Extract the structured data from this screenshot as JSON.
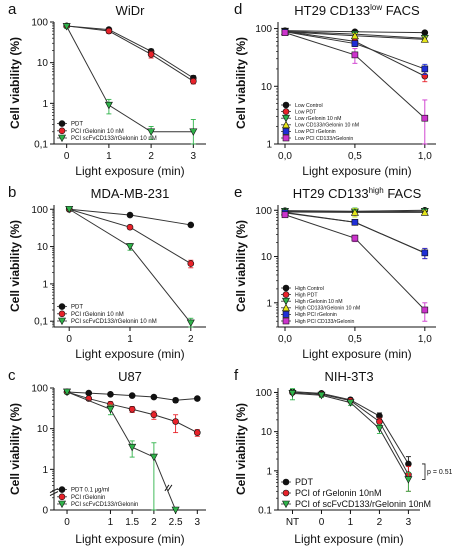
{
  "figure": {
    "background": "#ffffff"
  },
  "chart_data": [
    {
      "letter": "a",
      "title": "WiDr",
      "type": "line",
      "scale": "log",
      "xlabel": "Light exposure (min)",
      "ylabel": "Cell viability (%)",
      "xlim": [
        -0.3,
        3.3
      ],
      "ylim": [
        0.1,
        100
      ],
      "x_ticks": [
        0,
        1,
        2,
        3
      ],
      "x_tick_labels": [
        "0",
        "1",
        "2",
        "3"
      ],
      "y_ticks": [
        0.1,
        1,
        10,
        100
      ],
      "y_tick_labels": [
        "0,1",
        "1",
        "10",
        "100"
      ],
      "legend_position": "bottom-left",
      "series": [
        {
          "name": "PDT",
          "color": "#111111",
          "marker": "circle",
          "x": [
            0,
            1,
            2,
            3
          ],
          "values": [
            80,
            65,
            19,
            4.2
          ],
          "err": [
            8,
            7,
            2.5,
            0.6
          ]
        },
        {
          "name": "PCI rGelonin 10 nM",
          "color": "#e8222a",
          "marker": "circle",
          "x": [
            0,
            1,
            2,
            3
          ],
          "values": [
            80,
            60,
            16,
            3.5
          ],
          "err": [
            8,
            8,
            3,
            0.5
          ]
        },
        {
          "name": "PCI scFvCD133/rGelonin 10 nM",
          "color": "#2fb34a",
          "marker": "triangle",
          "x": [
            0,
            1,
            2,
            3
          ],
          "values": [
            78,
            0.9,
            0.2,
            0.2
          ],
          "err": [
            8,
            0.35,
            0.07,
            0.2
          ]
        }
      ]
    },
    {
      "letter": "b",
      "title": "MDA-MB-231",
      "type": "line",
      "scale": "log",
      "xlabel": "Light exposure (min)",
      "ylabel": "Cell viability (%)",
      "xlim": [
        -0.25,
        2.25
      ],
      "ylim": [
        0.07,
        130
      ],
      "x_ticks": [
        0,
        1,
        2
      ],
      "x_tick_labels": [
        "0",
        "1",
        "2"
      ],
      "y_ticks": [
        0.1,
        1,
        10,
        100
      ],
      "y_tick_labels": [
        "0,1",
        "1",
        "10",
        "100"
      ],
      "legend_position": "bottom-left",
      "series": [
        {
          "name": "PDT",
          "color": "#111111",
          "marker": "circle",
          "x": [
            0,
            1,
            2
          ],
          "values": [
            100,
            70,
            38
          ],
          "err": [
            5,
            4,
            3
          ]
        },
        {
          "name": "PCI rGelonin 10 nM",
          "color": "#e8222a",
          "marker": "circle",
          "x": [
            0,
            1,
            2
          ],
          "values": [
            100,
            33,
            3.5
          ],
          "err": [
            5,
            4,
            0.8
          ]
        },
        {
          "name": "PCI scFvCD133/rGelonin 10 nM",
          "color": "#2fb34a",
          "marker": "triangle",
          "x": [
            0,
            1,
            2
          ],
          "values": [
            100,
            10,
            0.09
          ],
          "err": [
            5,
            2,
            0.03
          ]
        }
      ]
    },
    {
      "letter": "c",
      "title": "U87",
      "type": "line",
      "scale": "log_broken",
      "xlabel": "Light exposure (min)",
      "ylabel": "Cell viability (%)",
      "xlim": [
        -0.3,
        3.2
      ],
      "ylim": [
        0.1,
        100
      ],
      "x_ticks": [
        0,
        1,
        1.5,
        2,
        2.5,
        3
      ],
      "x_tick_labels": [
        "0",
        "1",
        "1.5",
        "2",
        "2.5",
        "3"
      ],
      "y_ticks": [
        0.1,
        1,
        10,
        100
      ],
      "y_tick_labels": [
        "0",
        "1",
        "10",
        "100"
      ],
      "legend_position": "bottom-left",
      "series": [
        {
          "name": "PDT  0.1 μg/ml",
          "color": "#111111",
          "marker": "circle",
          "x": [
            0,
            0.5,
            1,
            1.5,
            2,
            2.5,
            3
          ],
          "values": [
            80,
            75,
            70,
            65,
            60,
            50,
            55
          ],
          "err": [
            6,
            5,
            5,
            5,
            5,
            6,
            5
          ]
        },
        {
          "name": "PCI rGelonin",
          "color": "#e8222a",
          "marker": "circle",
          "x": [
            0,
            0.5,
            1,
            1.5,
            2,
            2.5,
            3
          ],
          "values": [
            80,
            55,
            40,
            30,
            22,
            15,
            8
          ],
          "err": [
            6,
            6,
            6,
            5,
            5,
            7,
            1.5
          ]
        },
        {
          "name": "PCI scFvCD133/rGelonin",
          "color": "#2fb34a",
          "marker": "triangle",
          "x": [
            0,
            1,
            1.5,
            2,
            2.5
          ],
          "values": [
            80,
            30,
            3.5,
            2,
            0.1
          ],
          "err": [
            8,
            8,
            1.5,
            2.5,
            0
          ]
        }
      ]
    },
    {
      "letter": "d",
      "title": "HT29 CD133",
      "title_sup": "low",
      "title_suffix": " FACS",
      "type": "line",
      "scale": "log",
      "xlabel": "Light exposure (min)",
      "ylabel": "Cell viability (%)",
      "xlim": [
        -0.05,
        1.08
      ],
      "ylim": [
        1,
        130
      ],
      "x_ticks": [
        0,
        0.5,
        1
      ],
      "x_tick_labels": [
        "0,0",
        "0,5",
        "1,0"
      ],
      "y_ticks": [
        1,
        10,
        100
      ],
      "y_tick_labels": [
        "1",
        "10",
        "100"
      ],
      "legend_position": "bottom-left",
      "series": [
        {
          "name": "Low Control",
          "color": "#111111",
          "marker": "circle",
          "x": [
            0,
            0.5,
            1
          ],
          "values": [
            92,
            88,
            85
          ],
          "err": [
            6,
            5,
            5
          ]
        },
        {
          "name": "Low PDT",
          "color": "#e8222a",
          "marker": "circle",
          "x": [
            0,
            0.5,
            1
          ],
          "values": [
            90,
            60,
            15
          ],
          "err": [
            6,
            6,
            3
          ]
        },
        {
          "name": "Low rGelonin 10 nM",
          "color": "#2fb34a",
          "marker": "triangle",
          "x": [
            0,
            0.5,
            1
          ],
          "values": [
            90,
            80,
            68
          ],
          "err": [
            6,
            8,
            8
          ]
        },
        {
          "name": "Low CD133/rGelonin 10 nM",
          "color": "#e6e61a",
          "marker": "triangle_up",
          "x": [
            0,
            0.5,
            1
          ],
          "values": [
            88,
            75,
            65
          ],
          "err": [
            6,
            7,
            7
          ]
        },
        {
          "name": "Low PCI rGelonin",
          "color": "#1f2fd6",
          "marker": "square",
          "x": [
            0,
            0.5,
            1
          ],
          "values": [
            88,
            55,
            20
          ],
          "err": [
            6,
            6,
            4
          ]
        },
        {
          "name": "Low PCI CD133/rGelonin",
          "color": "#cc33cc",
          "marker": "square",
          "x": [
            0,
            0.5,
            1
          ],
          "values": [
            85,
            35,
            2.8
          ],
          "err": [
            6,
            10,
            3
          ]
        }
      ]
    },
    {
      "letter": "e",
      "title": "HT29 CD133",
      "title_sup": "high",
      "title_suffix": " FACS",
      "type": "line",
      "scale": "log",
      "xlabel": "Light exposure (min)",
      "ylabel": "Cell viability (%)",
      "xlim": [
        -0.05,
        1.08
      ],
      "ylim": [
        0.3,
        130
      ],
      "x_ticks": [
        0,
        0.5,
        1
      ],
      "x_tick_labels": [
        "0,0",
        "0,5",
        "1,0"
      ],
      "y_ticks": [
        1,
        10,
        100
      ],
      "y_tick_labels": [
        "1",
        "10",
        "100"
      ],
      "legend_position": "bottom-left",
      "series": [
        {
          "name": "High Control",
          "color": "#111111",
          "marker": "circle",
          "x": [
            0,
            0.5,
            1
          ],
          "values": [
            98,
            95,
            100
          ],
          "err": [
            6,
            5,
            6
          ]
        },
        {
          "name": "High PDT",
          "color": "#e8222a",
          "marker": "circle",
          "x": [
            0,
            0.5,
            1
          ],
          "values": [
            90,
            55,
            12
          ],
          "err": [
            6,
            6,
            3
          ]
        },
        {
          "name": "High rGelonin 10 nM",
          "color": "#2fb34a",
          "marker": "triangle",
          "x": [
            0,
            0.5,
            1
          ],
          "values": [
            95,
            92,
            95
          ],
          "err": [
            6,
            20,
            8
          ]
        },
        {
          "name": "High CD133/rGelonin 10 nM",
          "color": "#e6e61a",
          "marker": "triangle_up",
          "x": [
            0,
            0.5,
            1
          ],
          "values": [
            92,
            90,
            90
          ],
          "err": [
            6,
            18,
            8
          ]
        },
        {
          "name": "High PCI rGelonin",
          "color": "#1f2fd6",
          "marker": "square",
          "x": [
            0,
            0.5,
            1
          ],
          "values": [
            88,
            55,
            12
          ],
          "err": [
            6,
            6,
            3
          ]
        },
        {
          "name": "High PCI CD133/rGelonin",
          "color": "#cc33cc",
          "marker": "square",
          "x": [
            0,
            0.5,
            1
          ],
          "values": [
            80,
            25,
            0.7
          ],
          "err": [
            6,
            4,
            0.3
          ]
        }
      ]
    },
    {
      "letter": "f",
      "title": "NIH-3T3",
      "type": "line",
      "scale": "log",
      "xlabel": "Light exposure (min)",
      "ylabel": "Cell viability (%)",
      "xlim": [
        -1.5,
        3.4
      ],
      "ylim": [
        0.1,
        130
      ],
      "x_ticks": [
        -1,
        0,
        1,
        2,
        3
      ],
      "x_tick_labels": [
        "NT",
        "0",
        "1",
        "2",
        "3"
      ],
      "y_ticks": [
        0.1,
        1,
        10,
        100
      ],
      "y_tick_labels": [
        "0.1",
        "1",
        "10",
        "100"
      ],
      "legend_position": "bottom-left",
      "annotation": "p = 0.516",
      "series": [
        {
          "name": "PDT",
          "color": "#111111",
          "marker": "circle",
          "x": [
            -1,
            0,
            1,
            2,
            3
          ],
          "values": [
            105,
            95,
            65,
            25,
            1.5
          ],
          "err": [
            12,
            10,
            8,
            5,
            0.8
          ]
        },
        {
          "name": "PCI of rGelonin 10nM",
          "color": "#e8222a",
          "marker": "circle",
          "x": [
            -1,
            0,
            1,
            2,
            3
          ],
          "values": [
            100,
            90,
            62,
            18,
            0.8
          ],
          "err": [
            10,
            10,
            8,
            4,
            0.5
          ]
        },
        {
          "name": "PCI of scFvCD133/rGelonin 10nM",
          "color": "#2fb34a",
          "marker": "triangle",
          "x": [
            -1,
            0,
            1,
            2,
            3
          ],
          "values": [
            95,
            85,
            55,
            12,
            0.6
          ],
          "err": [
            30,
            10,
            8,
            3,
            0.3
          ]
        }
      ]
    }
  ]
}
